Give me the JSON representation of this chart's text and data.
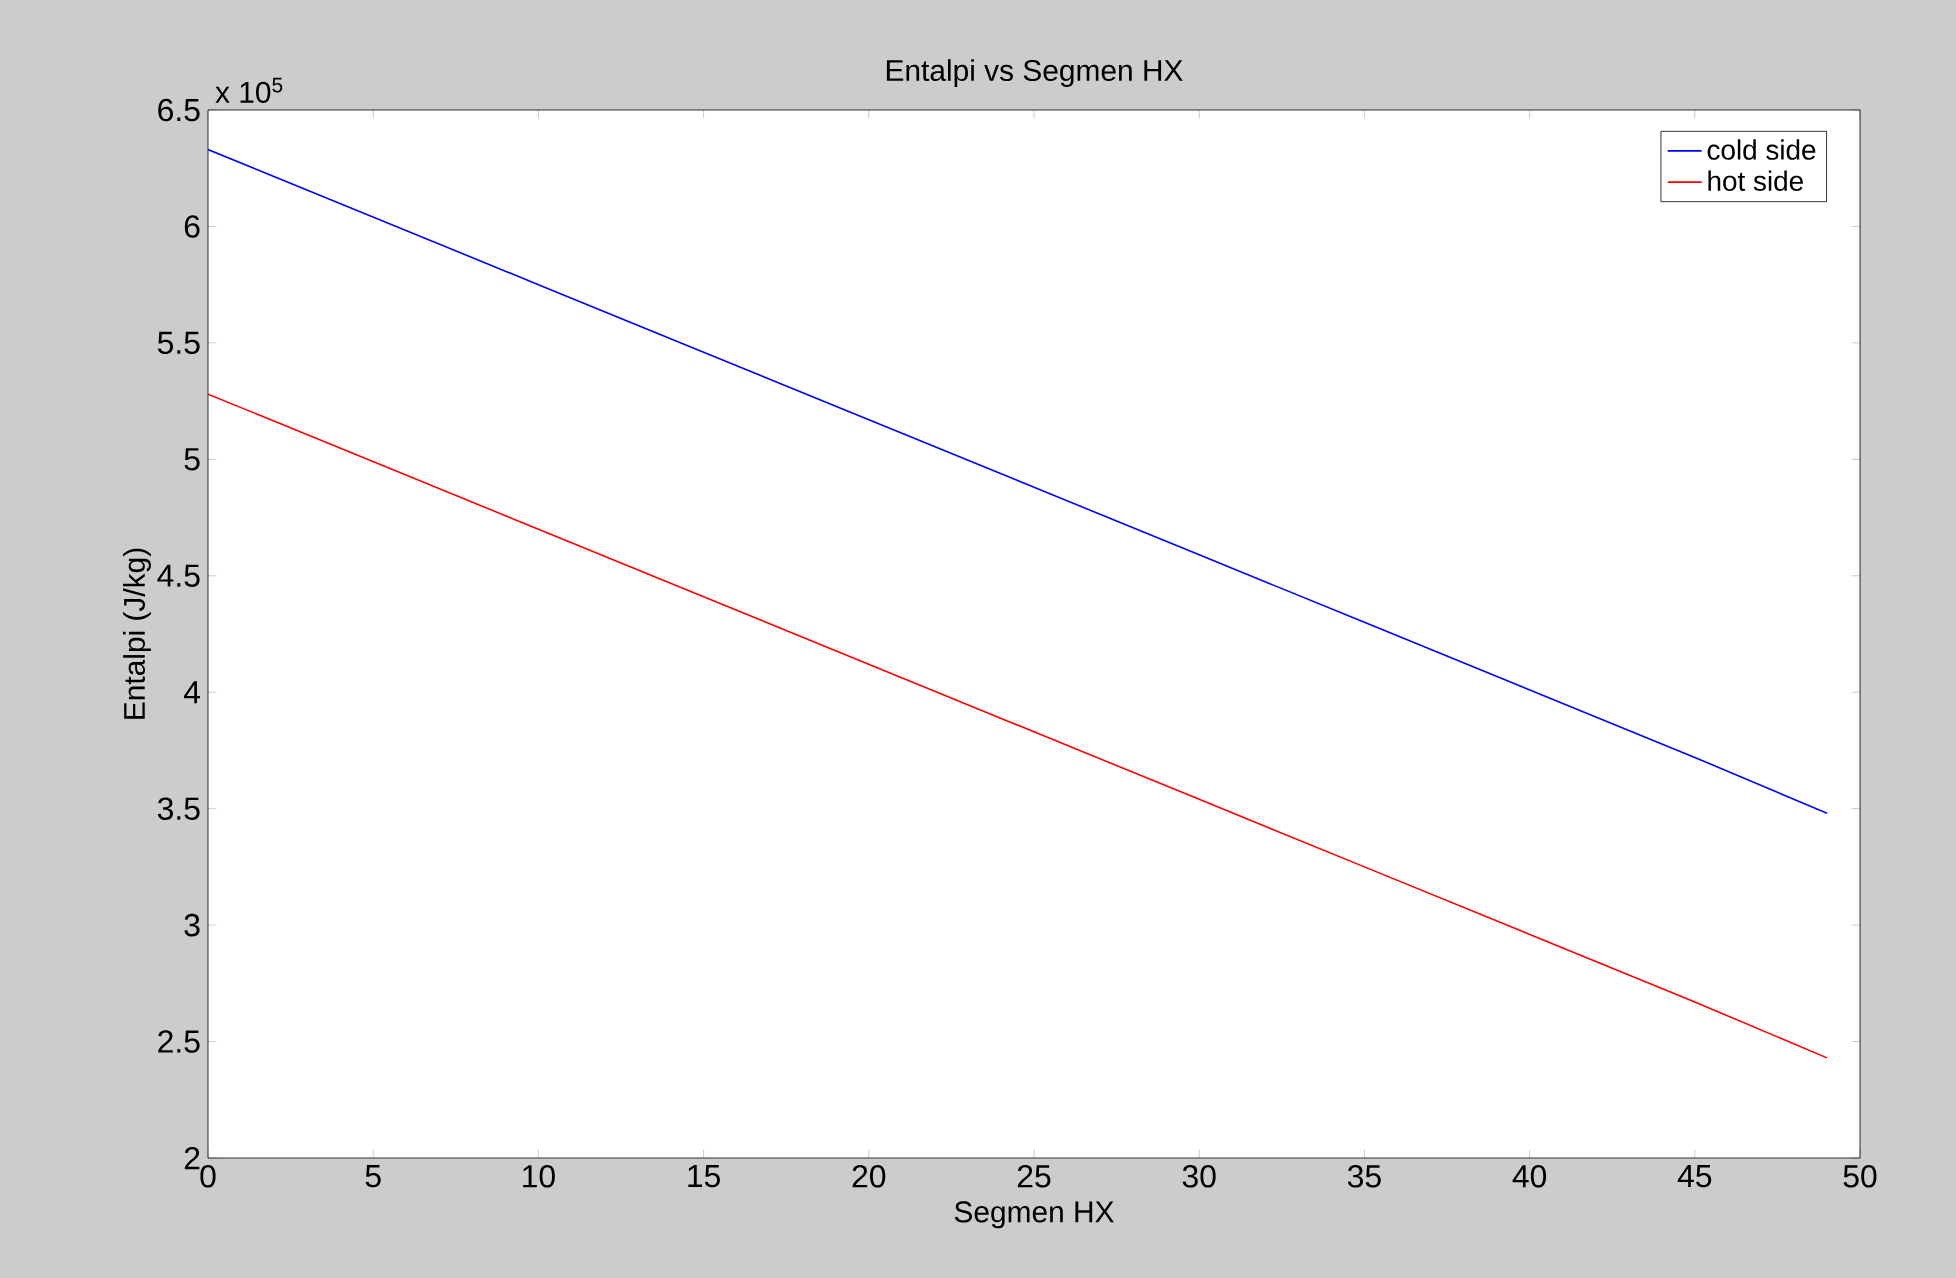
{
  "chart_data": {
    "type": "line",
    "title": "Entalpi vs Segmen HX",
    "xlabel": "Segmen HX",
    "ylabel": "Entalpi (J/kg)",
    "annotations": [
      "x 10$^{5}$"
    ],
    "xlim": [
      0,
      50
    ],
    "xticks": [
      0,
      5,
      10,
      15,
      20,
      25,
      30,
      35,
      40,
      45,
      50
    ],
    "ylim": [
      2,
      6.5
    ],
    "yticks": [
      2,
      2.5,
      3,
      3.5,
      4,
      4.5,
      5,
      5.5,
      6,
      6.5
    ],
    "legend": "top right",
    "marker": "none",
    "line_style": "solid",
    "grid": false,
    "series": [
      {
        "name": "cold side",
        "color": "#0000ff",
        "x": [
          0,
          5,
          10,
          15,
          20,
          25,
          30,
          35,
          40,
          45,
          49
        ],
        "values": [
          6.33,
          6.04,
          5.75,
          5.46,
          5.17,
          4.88,
          4.59,
          4.3,
          4.01,
          3.72,
          3.48
        ]
      },
      {
        "name": "hot side",
        "color": "#ff0000",
        "x": [
          0,
          5,
          10,
          15,
          20,
          25,
          30,
          35,
          40,
          45,
          49
        ],
        "values": [
          5.28,
          4.99,
          4.7,
          4.41,
          4.12,
          3.83,
          3.54,
          3.25,
          2.96,
          2.67,
          2.43
        ]
      }
    ]
  }
}
